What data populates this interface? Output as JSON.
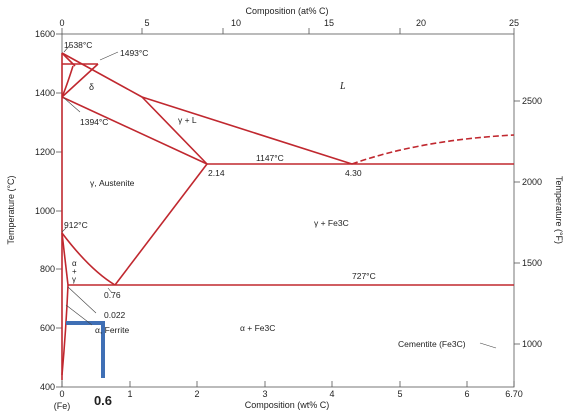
{
  "top_axis": {
    "label": "Composition (at% C)",
    "ticks": [
      {
        "label": "0",
        "wt": 0
      },
      {
        "label": "5",
        "wt": 1.18
      },
      {
        "label": "10",
        "wt": 2.38
      },
      {
        "label": "15",
        "wt": 3.65
      },
      {
        "label": "20",
        "wt": 5.0
      },
      {
        "label": "25",
        "wt": 6.7
      }
    ]
  },
  "bottom_axis": {
    "label": "Composition (wt% C)",
    "ticks": [
      "0",
      "1",
      "2",
      "3",
      "4",
      "5",
      "6",
      "6.70"
    ],
    "fe_label": "(Fe)",
    "marker_label": "0.6"
  },
  "left_axis": {
    "label": "Temperature (°C)",
    "ticks": [
      "400",
      "600",
      "800",
      "1000",
      "1200",
      "1400",
      "1600"
    ]
  },
  "right_axis": {
    "label": "Temperature (°F)",
    "ticks": [
      "1000",
      "1500",
      "2000",
      "2500"
    ]
  },
  "chart_data": {
    "type": "phase-diagram",
    "xlabel": "Composition (wt% C)",
    "ylabel": "Temperature (°C)",
    "xlim": [
      0,
      6.7
    ],
    "ylim": [
      400,
      1600
    ],
    "key_points": [
      {
        "label": "1538°C",
        "x": 0.0,
        "y": 1538
      },
      {
        "label": "1493°C",
        "x": 0.17,
        "y": 1493
      },
      {
        "label": "1394°C",
        "x": 0.0,
        "y": 1394
      },
      {
        "label": "1147°C",
        "x": 4.3,
        "y": 1147
      },
      {
        "label": "2.14",
        "x": 2.14,
        "y": 1147
      },
      {
        "label": "4.30",
        "x": 4.3,
        "y": 1147
      },
      {
        "label": "912°C",
        "x": 0.0,
        "y": 912
      },
      {
        "label": "727°C",
        "x": 0.76,
        "y": 727
      },
      {
        "label": "0.76",
        "x": 0.76,
        "y": 727
      },
      {
        "label": "0.022",
        "x": 0.022,
        "y": 727
      }
    ],
    "phase_labels": {
      "liquid": "L",
      "delta": "δ",
      "gamma_liquid": "γ + L",
      "austenite": "γ, Austenite",
      "gamma_cementite": "γ + Fe3C",
      "alpha_gamma_a": "α",
      "alpha_gamma_plus": "+",
      "alpha_gamma_g": "γ",
      "ferrite": "α, Ferrite",
      "alpha_cementite": "α + Fe3C",
      "cementite": "Cementite (Fe3C)"
    },
    "marker": {
      "composition": 0.6,
      "temperature": 610,
      "color": "#3f6fb5"
    },
    "line_color": "#c0282f"
  }
}
